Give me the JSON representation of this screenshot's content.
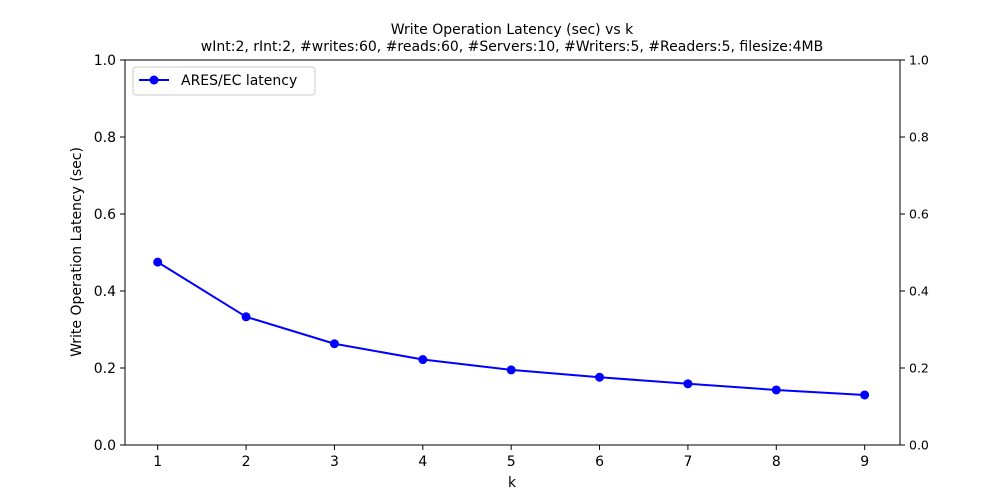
{
  "chart_data": {
    "type": "line",
    "title": "Write Operation Latency (sec) vs k",
    "subtitle": "wInt:2, rInt:2, #writes:60, #reads:60, #Servers:10, #Writers:5, #Readers:5, filesize:4MB",
    "xlabel": "k",
    "ylabel": "Write Operation Latency (sec)",
    "xlim": [
      0.63,
      9.4
    ],
    "ylim": [
      0,
      1.0
    ],
    "x_ticks": [
      "1",
      "2",
      "3",
      "4",
      "5",
      "6",
      "7",
      "8",
      "9"
    ],
    "y_ticks": [
      "0.0",
      "0.2",
      "0.4",
      "0.6",
      "0.8",
      "1.0"
    ],
    "y_ticks_right": [
      "0.0",
      "0.2",
      "0.4",
      "0.6",
      "0.8",
      "1.0"
    ],
    "grid": false,
    "legend_position": "top-left",
    "x": [
      1,
      2,
      3,
      4,
      5,
      6,
      7,
      8,
      9
    ],
    "series": [
      {
        "name": "ARES/EC latency",
        "color": "#0000ff",
        "values": [
          0.475,
          0.333,
          0.263,
          0.222,
          0.195,
          0.176,
          0.159,
          0.143,
          0.13
        ]
      }
    ]
  }
}
